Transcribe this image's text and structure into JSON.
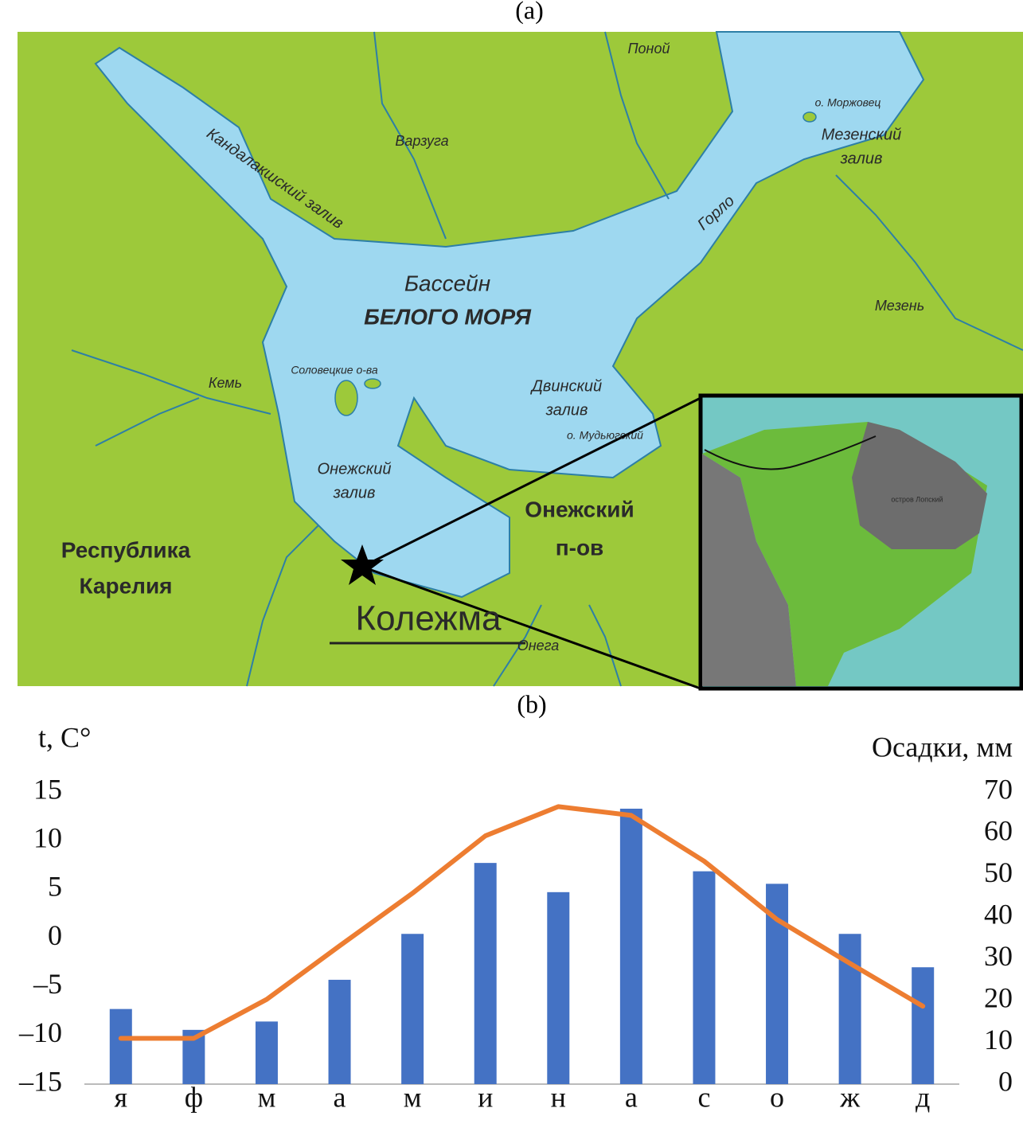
{
  "panel_a_label": "(a)",
  "panel_b_label": "(b)",
  "map": {
    "labels": [
      "Поной",
      "Варзуга",
      "Кандалакшский залив",
      "о. Моржовец",
      "Мезенский",
      "залив",
      "Горло",
      "Бассейн",
      "БЕЛОГО МОРЯ",
      "Мезень",
      "Соловецкие о-ва",
      "Кемь",
      "Двинский",
      "залив",
      "о. Мудьюгский",
      "Онежский",
      "залив",
      "Онежский",
      "п-ов",
      "Республика",
      "Карелия",
      "Колежма",
      "Онега",
      "остров Лопский"
    ]
  },
  "chart_data": {
    "type": "bar",
    "y_label": "t, C°",
    "y2_label": "Осадки, мм",
    "categories": [
      "я",
      "ф",
      "м",
      "а",
      "м",
      "и",
      "н",
      "а",
      "с",
      "о",
      "ж",
      "д"
    ],
    "series": [
      {
        "type": "bar",
        "axis": "y2",
        "color": "#4472c4",
        "values": [
          18,
          13,
          15,
          25,
          36,
          53,
          46,
          66,
          51,
          48,
          36,
          28
        ]
      },
      {
        "type": "line",
        "color": "#ed7d31",
        "values": [
          -10.3,
          -10.3,
          -6.3,
          -0.8,
          4.6,
          10.5,
          13.5,
          12.6,
          7.9,
          1.9,
          -2.6,
          -7.0
        ]
      }
    ],
    "ylim": [
      -15,
      15
    ],
    "yticks": [
      {
        "value": -15,
        "label": "–15"
      },
      {
        "value": -10,
        "label": "–10"
      },
      {
        "value": -5,
        "label": "–5"
      },
      0,
      5,
      10,
      15
    ],
    "y2lim": [
      0,
      70
    ],
    "y2ticks": [
      0,
      10,
      20,
      30,
      40,
      50,
      60,
      70
    ],
    "grid": false
  }
}
